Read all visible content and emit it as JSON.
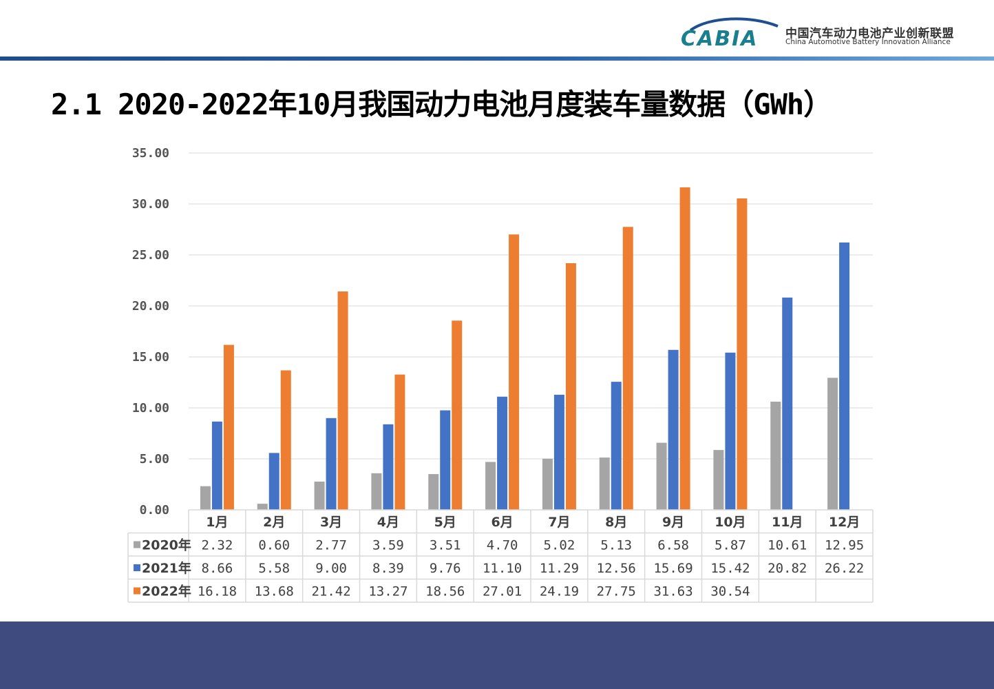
{
  "header": {
    "logo_text": "CABIA",
    "org_name_cn": "中国汽车动力电池产业创新联盟",
    "org_name_en": "China Automotive Battery Innovation Alliance"
  },
  "page_title": "2.1 2020-2022年10月我国动力电池月度装车量数据（GWh）",
  "chart_data": {
    "type": "bar",
    "categories": [
      "1月",
      "2月",
      "3月",
      "4月",
      "5月",
      "6月",
      "7月",
      "8月",
      "9月",
      "10月",
      "11月",
      "12月"
    ],
    "ylim": [
      0,
      35
    ],
    "yticks": [
      "0.00",
      "5.00",
      "10.00",
      "15.00",
      "20.00",
      "25.00",
      "30.00",
      "35.00"
    ],
    "grid": true,
    "legend": "data-table",
    "series": [
      {
        "name": "2020年",
        "color": "#a5a5a5",
        "values": [
          2.32,
          0.6,
          2.77,
          3.59,
          3.51,
          4.7,
          5.02,
          5.13,
          6.58,
          5.87,
          10.61,
          12.95
        ],
        "labels": [
          "2.32",
          "0.60",
          "2.77",
          "3.59",
          "3.51",
          "4.70",
          "5.02",
          "5.13",
          "6.58",
          "5.87",
          "10.61",
          "12.95"
        ]
      },
      {
        "name": "2021年",
        "color": "#4472c4",
        "values": [
          8.66,
          5.58,
          9.0,
          8.39,
          9.76,
          11.1,
          11.29,
          12.56,
          15.69,
          15.42,
          20.82,
          26.22
        ],
        "labels": [
          "8.66",
          "5.58",
          "9.00",
          "8.39",
          "9.76",
          "11.10",
          "11.29",
          "12.56",
          "15.69",
          "15.42",
          "20.82",
          "26.22"
        ]
      },
      {
        "name": "2022年",
        "color": "#ed7d31",
        "values": [
          16.18,
          13.68,
          21.42,
          13.27,
          18.56,
          27.01,
          24.19,
          27.75,
          31.63,
          30.54,
          null,
          null
        ],
        "labels": [
          "16.18",
          "13.68",
          "21.42",
          "13.27",
          "18.56",
          "27.01",
          "24.19",
          "27.75",
          "31.63",
          "30.54",
          "",
          ""
        ]
      }
    ]
  }
}
